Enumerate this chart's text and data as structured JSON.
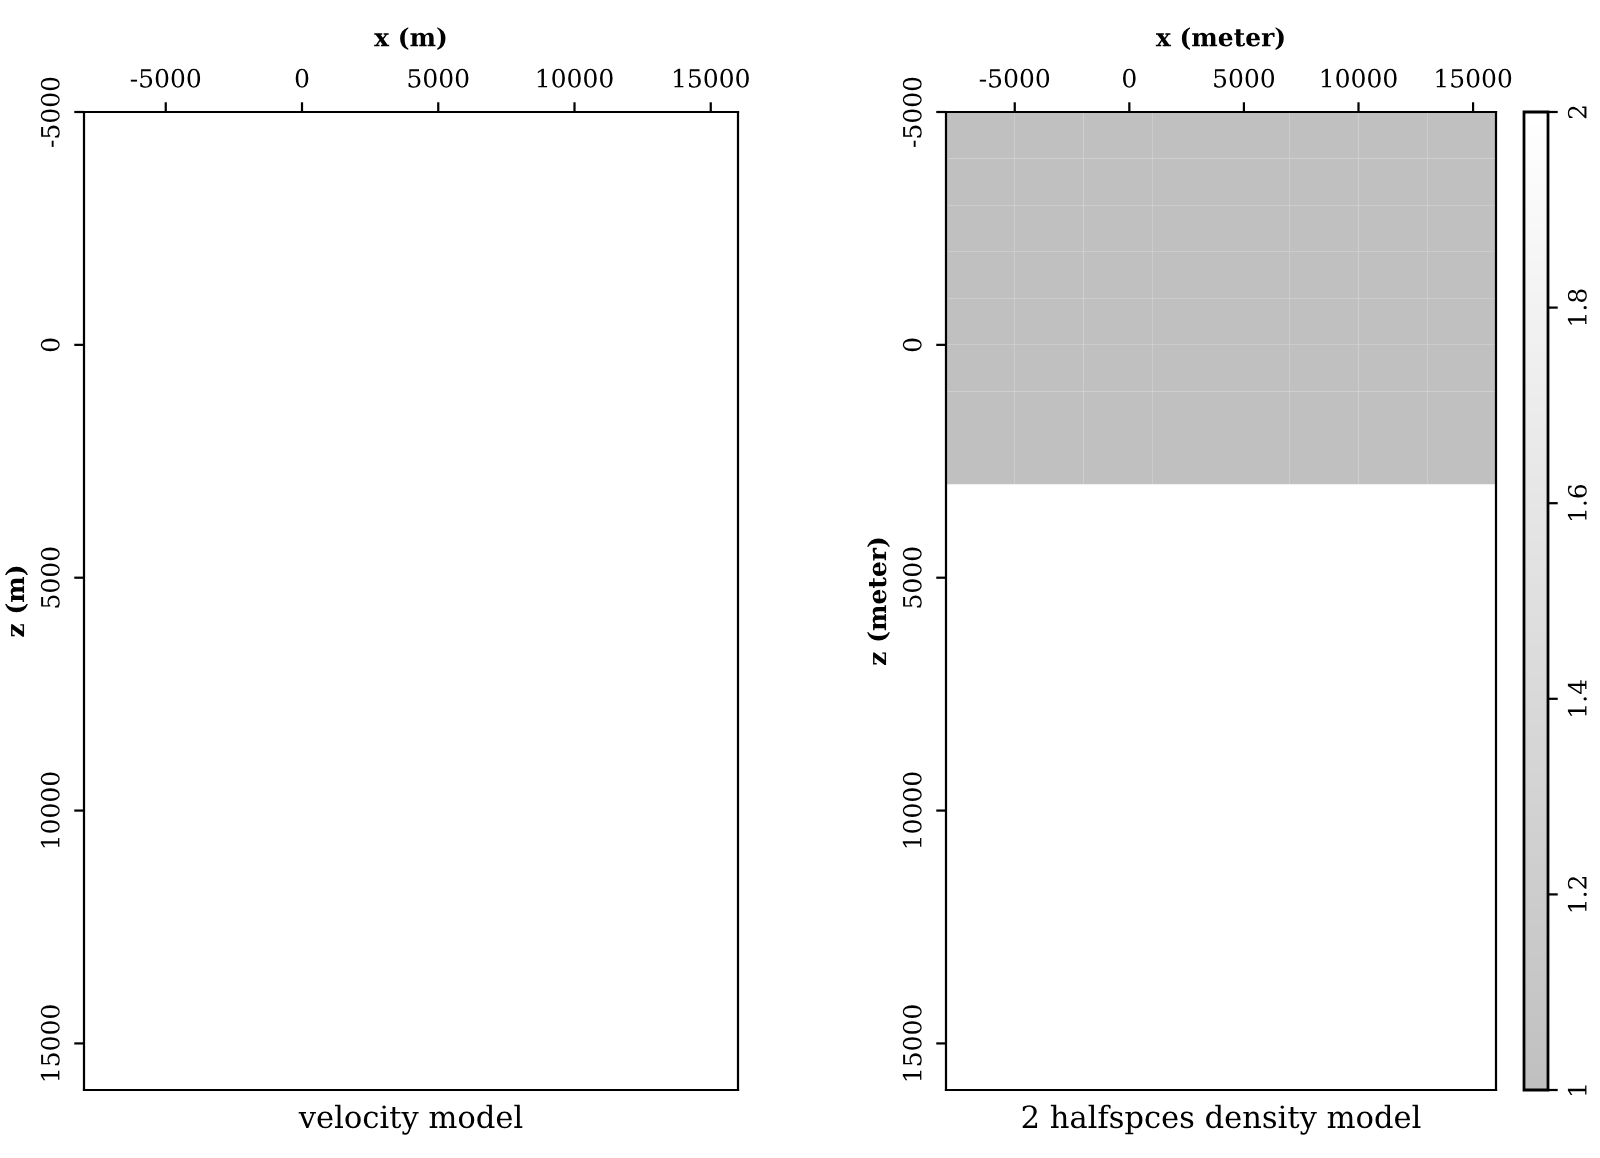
{
  "chart_data": [
    {
      "type": "heatmap",
      "title": "velocity model",
      "xlabel": "x (m)",
      "ylabel": "z (m)",
      "xlim": [
        -8000,
        16000
      ],
      "xticks": [
        -5000,
        0,
        5000,
        10000,
        15000
      ],
      "ylim": [
        16000,
        -5000
      ],
      "yticks": [
        -5000,
        0,
        5000,
        10000,
        15000
      ]
    },
    {
      "type": "heatmap",
      "title": "2 halfspces density model",
      "xlabel": "x (meter)",
      "ylabel": "z (meter)",
      "x": [
        -6500,
        -3500,
        -500,
        2500,
        5500,
        8500,
        11500,
        14500
      ],
      "y": [
        -4500,
        -3500,
        -2500,
        -1500,
        -500,
        500,
        1500,
        2500,
        3500,
        4500,
        5500,
        6500,
        7500,
        8500,
        9500,
        10500,
        11500,
        12500,
        13500,
        14500,
        15500
      ],
      "cells": [
        [
          1,
          1,
          1,
          1,
          1,
          1,
          1,
          1
        ],
        [
          1,
          1,
          1,
          1,
          1,
          1,
          1,
          1
        ],
        [
          1,
          1,
          1,
          1,
          1,
          1,
          1,
          1
        ],
        [
          1,
          1,
          1,
          1,
          1,
          1,
          1,
          1
        ],
        [
          1,
          1,
          1,
          1,
          1,
          1,
          1,
          1
        ],
        [
          1,
          1,
          1,
          1,
          1,
          1,
          1,
          1
        ],
        [
          1,
          1,
          1,
          1,
          1,
          1,
          1,
          1
        ],
        [
          1,
          1,
          1,
          1,
          1,
          1,
          1,
          1
        ],
        [
          2,
          2,
          2,
          2,
          2,
          2,
          2,
          2
        ],
        [
          2,
          2,
          2,
          2,
          2,
          2,
          2,
          2
        ],
        [
          2,
          2,
          2,
          2,
          2,
          2,
          2,
          2
        ],
        [
          2,
          2,
          2,
          2,
          2,
          2,
          2,
          2
        ],
        [
          2,
          2,
          2,
          2,
          2,
          2,
          2,
          2
        ],
        [
          2,
          2,
          2,
          2,
          2,
          2,
          2,
          2
        ],
        [
          2,
          2,
          2,
          2,
          2,
          2,
          2,
          2
        ],
        [
          2,
          2,
          2,
          2,
          2,
          2,
          2,
          2
        ],
        [
          2,
          2,
          2,
          2,
          2,
          2,
          2,
          2
        ],
        [
          2,
          2,
          2,
          2,
          2,
          2,
          2,
          2
        ],
        [
          2,
          2,
          2,
          2,
          2,
          2,
          2,
          2
        ],
        [
          2,
          2,
          2,
          2,
          2,
          2,
          2,
          2
        ],
        [
          2,
          2,
          2,
          2,
          2,
          2,
          2,
          2
        ]
      ],
      "colors": [
        "#c0c0c0",
        "#ffffff"
      ],
      "clim": [
        1,
        2
      ],
      "cticks": [
        1,
        1.2,
        1.4,
        1.6,
        1.8,
        2
      ],
      "xlim": [
        -8000,
        16000
      ],
      "xticks": [
        -5000,
        0,
        5000,
        10000,
        15000
      ],
      "ylim": [
        16000,
        -5000
      ],
      "yticks": [
        -5000,
        0,
        5000,
        10000,
        15000
      ]
    }
  ]
}
